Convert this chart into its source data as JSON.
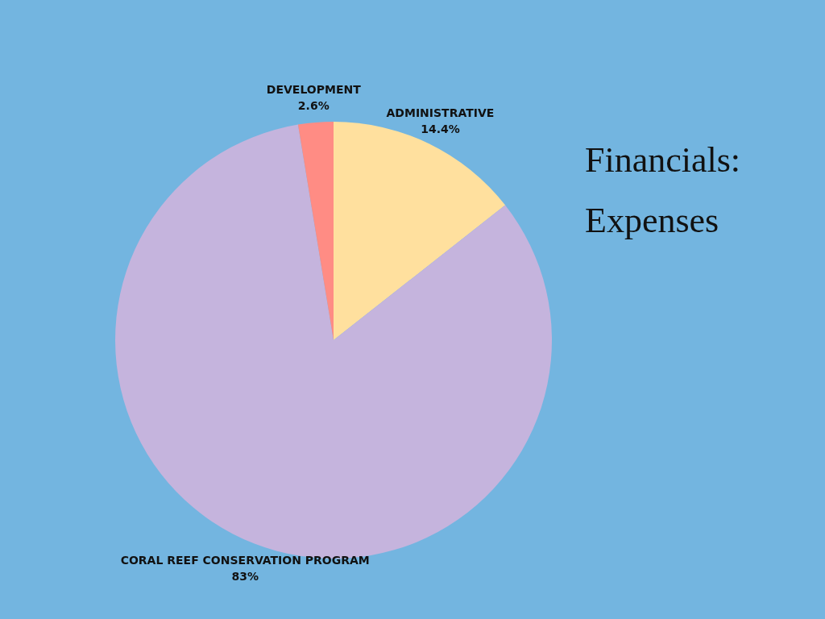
{
  "chart_data": {
    "type": "pie",
    "title": "Financials: Expenses",
    "categories": [
      "ADMINISTRATIVE",
      "CORAL REEF CONSERVATION PROGRAM",
      "DEVELOPMENT"
    ],
    "values": [
      14.4,
      83,
      2.6
    ],
    "colors": [
      "#ffe09e",
      "#c5b4dd",
      "#ff8c84"
    ],
    "value_labels": [
      "14.4%",
      "83%",
      "2.6%"
    ],
    "legend": false
  }
}
